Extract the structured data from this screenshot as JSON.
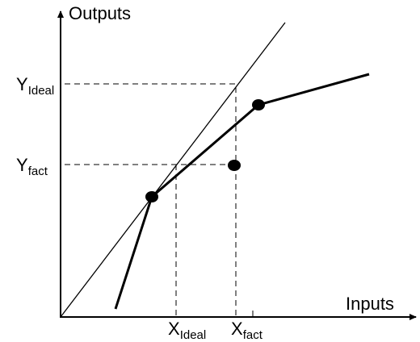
{
  "axes": {
    "y_label": "Outputs",
    "x_label": "Inputs"
  },
  "labels": {
    "y_ideal": {
      "main": "Y",
      "sub": "Ideal"
    },
    "y_fact": {
      "main": "Y",
      "sub": "fact"
    },
    "x_ideal": {
      "main": "X",
      "sub": "Ideal"
    },
    "x_fact": {
      "main": "X",
      "sub": "fact"
    }
  }
}
